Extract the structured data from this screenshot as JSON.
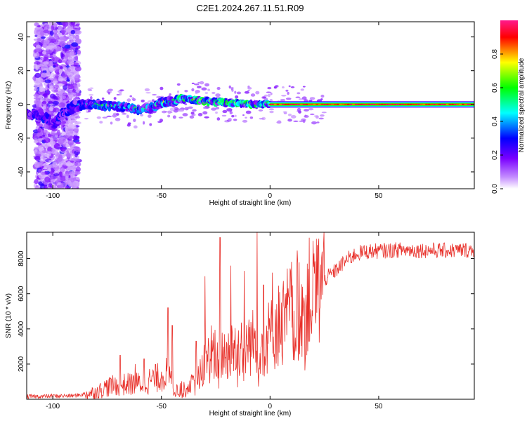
{
  "chart_data": [
    {
      "type": "heatmap",
      "title": "C2E1.2024.267.11.51.R09",
      "xlabel": "Height of straight line (km)",
      "ylabel": "Frequency (Hz)",
      "xlim": [
        -112,
        94
      ],
      "ylim": [
        -50,
        49
      ],
      "xticks": [
        -100,
        -50,
        0,
        50
      ],
      "yticks": [
        -40,
        -20,
        0,
        20,
        40
      ],
      "colorbar": {
        "label": "Normalized spectral amplitude",
        "range": [
          0,
          1
        ],
        "ticks": [
          "0.0",
          "0.2",
          "0.4",
          "0.6",
          "0.8"
        ],
        "colors": [
          "#ffffff",
          "#c48cff",
          "#7a00ff",
          "#0000ff",
          "#00ffff",
          "#00ff00",
          "#ffff00",
          "#ff0000",
          "#ff1a8c"
        ]
      },
      "ridge": {
        "x": [
          -112,
          -105,
          -100,
          -96,
          -90,
          -86,
          -80,
          -70,
          -60,
          -55,
          -50,
          -45,
          -40,
          -35,
          -30,
          -20,
          -10,
          0,
          20,
          50,
          94
        ],
        "freq": [
          -6,
          -6,
          -12,
          -6,
          -1,
          0,
          0,
          -1,
          -3,
          -2,
          1,
          2,
          3,
          3,
          2,
          1,
          0.5,
          0,
          0,
          0,
          0
        ]
      },
      "noise_band": [
        -108,
        -88
      ]
    },
    {
      "type": "line",
      "title": "",
      "xlabel": "Height of straight line (km)",
      "ylabel": "SNR (10 * v/v)",
      "xlim": [
        -112,
        94
      ],
      "ylim": [
        0,
        9500
      ],
      "xticks": [
        -100,
        -50,
        0,
        50
      ],
      "yticks": [
        2000,
        4000,
        6000,
        8000
      ],
      "color": "#e8302a",
      "trend": {
        "x": [
          -112,
          -90,
          -85,
          -80,
          -75,
          -70,
          -60,
          -52,
          -47,
          -44,
          -40,
          -35,
          -30,
          -25,
          -20,
          -15,
          -10,
          -5,
          0,
          5,
          10,
          15,
          20,
          25,
          30,
          35,
          40,
          45,
          60,
          80,
          94
        ],
        "y": [
          150,
          200,
          300,
          400,
          700,
          800,
          900,
          1200,
          1500,
          700,
          500,
          900,
          2200,
          2500,
          2600,
          3000,
          3200,
          3300,
          3600,
          4400,
          5100,
          5600,
          6000,
          6800,
          7300,
          7900,
          8300,
          8400,
          8500,
          8450,
          8500
        ]
      },
      "spikes": [
        {
          "x": -69,
          "y": 2500
        },
        {
          "x": -62,
          "y": 2000
        },
        {
          "x": -58,
          "y": 2300
        },
        {
          "x": -47,
          "y": 5200
        },
        {
          "x": -45,
          "y": 4200
        },
        {
          "x": -34,
          "y": 3300
        },
        {
          "x": -30,
          "y": 7000
        },
        {
          "x": -27,
          "y": 4200
        },
        {
          "x": -23,
          "y": 9200
        },
        {
          "x": -18,
          "y": 7600
        },
        {
          "x": -15,
          "y": 8800
        },
        {
          "x": -12,
          "y": 7300
        },
        {
          "x": -6,
          "y": 9500
        },
        {
          "x": -3,
          "y": 6500
        },
        {
          "x": 1,
          "y": 7200
        },
        {
          "x": 7,
          "y": 6000
        },
        {
          "x": 15,
          "y": 6400
        }
      ]
    }
  ]
}
